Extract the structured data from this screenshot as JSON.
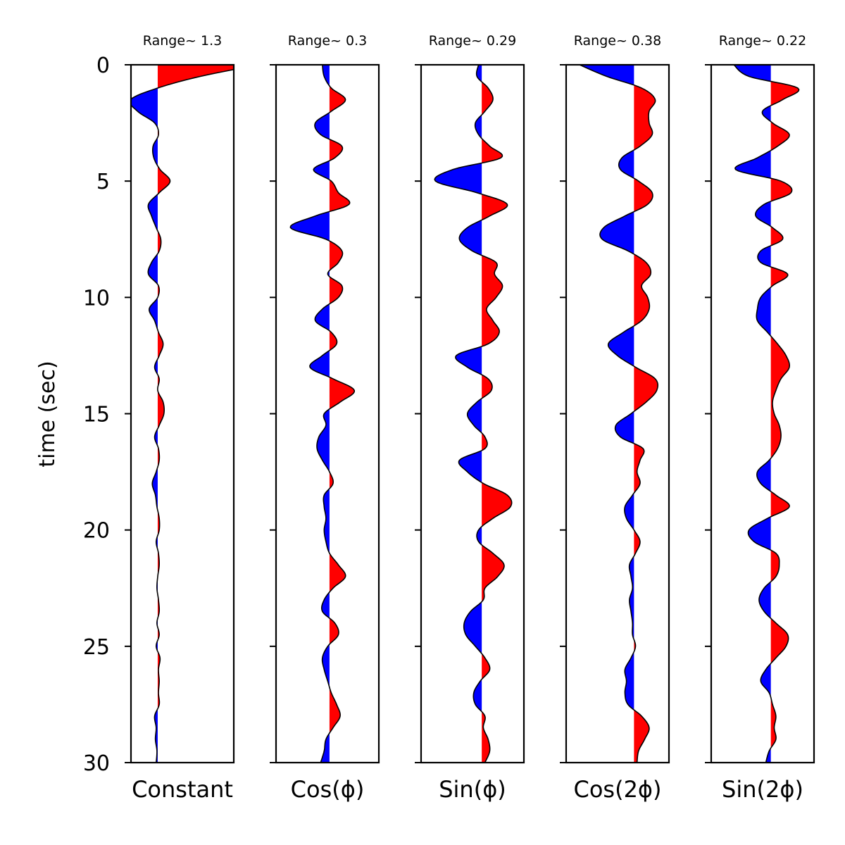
{
  "chart_data": {
    "type": "area",
    "ylabel": "time (sec)",
    "ylim": [
      0,
      30
    ],
    "y_inverted": true,
    "yticks": [
      0,
      5,
      10,
      15,
      20,
      25,
      30
    ],
    "time_step": 0.5,
    "colors": {
      "positive": "#ff0000",
      "negative": "#0000ff",
      "outline": "#000000"
    },
    "panels": [
      {
        "xlabel": "Constant",
        "title": "Range~ 1.3",
        "amplitudes": [
          1.3,
          0.55,
          0.0,
          -0.35,
          -0.26,
          -0.04,
          0.01,
          -0.06,
          -0.05,
          0.03,
          0.16,
          0.02,
          -0.12,
          -0.08,
          -0.02,
          0.04,
          0.02,
          -0.08,
          -0.12,
          0.01,
          0.0,
          -0.11,
          -0.04,
          0.01,
          0.07,
          0.02,
          -0.04,
          0.02,
          0.0,
          0.07,
          0.08,
          0.02,
          -0.04,
          0.01,
          0.02,
          -0.02,
          -0.07,
          -0.03,
          -0.01,
          0.02,
          0.02,
          -0.02,
          0.01,
          0.02,
          0.0,
          -0.01,
          0.01,
          0.02,
          -0.01,
          0.02,
          -0.02,
          0.03,
          0.01,
          0.02,
          0.01,
          0.02,
          -0.04,
          -0.02,
          -0.03,
          -0.01,
          -0.02
        ]
      },
      {
        "xlabel": "Cos(ϕ)",
        "title": "Range~ 0.3",
        "amplitudes": [
          -0.04,
          -0.03,
          0.01,
          0.09,
          0.01,
          -0.08,
          -0.05,
          0.07,
          0.03,
          -0.09,
          0.01,
          0.05,
          0.11,
          -0.08,
          -0.22,
          -0.02,
          0.07,
          0.05,
          -0.01,
          0.07,
          0.05,
          -0.04,
          -0.08,
          0.01,
          0.04,
          -0.04,
          -0.11,
          0.02,
          0.14,
          0.06,
          -0.03,
          -0.02,
          -0.06,
          -0.07,
          -0.04,
          0.0,
          0.02,
          -0.03,
          -0.03,
          -0.02,
          -0.03,
          -0.02,
          0.0,
          0.05,
          0.09,
          0.02,
          -0.03,
          -0.04,
          0.03,
          0.05,
          -0.01,
          -0.04,
          -0.03,
          -0.01,
          0.01,
          0.04,
          0.06,
          0.02,
          -0.02,
          -0.03,
          -0.05
        ]
      },
      {
        "xlabel": "Sin(ϕ)",
        "title": "Range~ 0.29",
        "amplitudes": [
          -0.02,
          -0.03,
          0.04,
          0.07,
          0.02,
          -0.04,
          -0.02,
          0.05,
          0.12,
          -0.18,
          -0.29,
          -0.03,
          0.16,
          0.05,
          -0.09,
          -0.14,
          -0.06,
          0.09,
          0.08,
          0.13,
          0.09,
          0.03,
          0.07,
          0.11,
          0.04,
          -0.16,
          -0.09,
          0.04,
          0.06,
          -0.03,
          -0.09,
          -0.05,
          0.02,
          0.02,
          -0.14,
          -0.09,
          0.01,
          0.16,
          0.18,
          0.07,
          -0.02,
          -0.02,
          0.07,
          0.14,
          0.1,
          0.02,
          0.01,
          -0.07,
          -0.11,
          -0.1,
          -0.04,
          0.02,
          0.05,
          -0.01,
          -0.05,
          -0.04,
          0.02,
          0.01,
          0.04,
          0.05,
          0.02
        ]
      },
      {
        "xlabel": "Cos(2ϕ)",
        "title": "Range~ 0.38",
        "amplitudes": [
          -0.36,
          -0.18,
          0.05,
          0.14,
          0.1,
          0.1,
          0.12,
          0.04,
          -0.08,
          -0.09,
          0.03,
          0.12,
          0.09,
          -0.06,
          -0.2,
          -0.21,
          -0.04,
          0.08,
          0.11,
          0.05,
          0.09,
          0.1,
          0.05,
          -0.07,
          -0.17,
          -0.11,
          0.01,
          0.14,
          0.15,
          0.08,
          -0.02,
          -0.12,
          -0.09,
          0.06,
          0.04,
          0.02,
          0.04,
          -0.01,
          -0.06,
          -0.05,
          0.0,
          0.04,
          0.01,
          -0.03,
          -0.02,
          -0.01,
          -0.03,
          -0.02,
          -0.01,
          -0.01,
          0.01,
          -0.02,
          -0.06,
          -0.05,
          -0.06,
          -0.04,
          0.05,
          0.1,
          0.07,
          0.03,
          0.02
        ]
      },
      {
        "xlabel": "Sin(2ϕ)",
        "title": "Range~ 0.22",
        "amplitudes": [
          -0.22,
          -0.13,
          0.16,
          0.07,
          -0.05,
          0.01,
          0.11,
          0.04,
          -0.08,
          -0.21,
          0.06,
          0.12,
          -0.04,
          -0.09,
          0.01,
          0.07,
          -0.06,
          -0.06,
          0.1,
          0.01,
          -0.06,
          -0.08,
          -0.08,
          -0.02,
          0.04,
          0.09,
          0.11,
          0.06,
          0.03,
          0.01,
          0.02,
          0.05,
          0.06,
          0.04,
          -0.01,
          -0.08,
          -0.06,
          0.03,
          0.11,
          -0.02,
          -0.13,
          -0.1,
          0.03,
          0.05,
          0.03,
          -0.04,
          -0.07,
          -0.04,
          0.03,
          0.1,
          0.09,
          0.03,
          -0.03,
          -0.06,
          -0.01,
          0.01,
          0.03,
          0.02,
          0.03,
          -0.01,
          -0.03
        ]
      }
    ]
  }
}
